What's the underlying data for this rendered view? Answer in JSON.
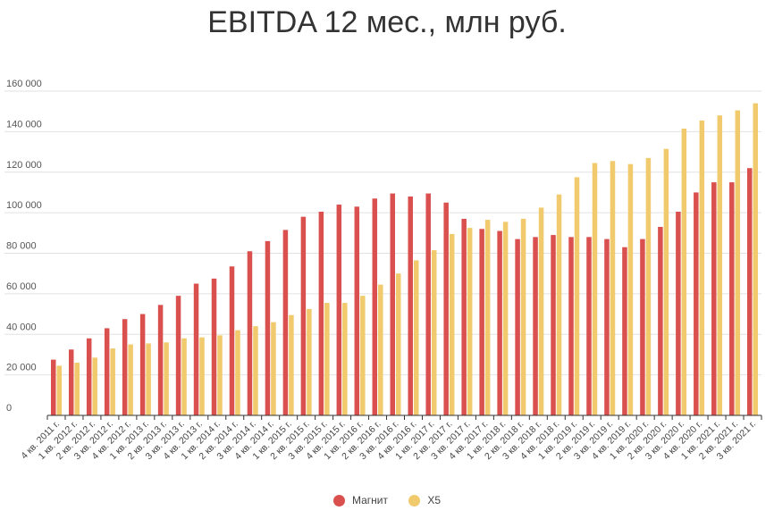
{
  "chart_data": {
    "type": "bar",
    "title": "EBITDA 12 мес., млн руб.",
    "xlabel": "",
    "ylabel": "",
    "ylim": [
      0,
      160000
    ],
    "yticks": [
      "0",
      "20 000",
      "40 000",
      "60 000",
      "80 000",
      "100 000",
      "120 000",
      "140 000",
      "160 000"
    ],
    "grid": true,
    "legend_position": "bottom",
    "categories": [
      "4 кв. 2011 г.",
      "1 кв. 2012 г.",
      "2 кв. 2012 г.",
      "3 кв. 2012 г.",
      "4 кв. 2012 г.",
      "1 кв. 2013 г.",
      "2 кв. 2013 г.",
      "3 кв. 2013 г.",
      "4 кв. 2013 г.",
      "1 кв. 2014 г.",
      "2 кв. 2014 г.",
      "3 кв. 2014 г.",
      "4 кв. 2014 г.",
      "1 кв. 2015 г.",
      "2 кв. 2015 г.",
      "3 кв. 2015 г.",
      "4 кв. 2015 г.",
      "1 кв. 2016 г.",
      "2 кв. 2016 г.",
      "3 кв. 2016 г.",
      "4 кв. 2016 г.",
      "1 кв. 2017 г.",
      "2 кв. 2017 г.",
      "3 кв. 2017 г.",
      "4 кв. 2017 г.",
      "1 кв. 2018 г.",
      "2 кв. 2018 г.",
      "3 кв. 2018 г.",
      "4 кв. 2018 г.",
      "1 кв. 2019 г.",
      "2 кв. 2019 г.",
      "3 кв. 2019 г.",
      "4 кв. 2019 г.",
      "1 кв. 2020 г.",
      "2 кв. 2020 г.",
      "3 кв. 2020 г.",
      "4 кв. 2020 г.",
      "1 кв. 2021 г.",
      "2 кв. 2021 г.",
      "3 кв. 2021 г."
    ],
    "series": [
      {
        "name": "Магнит",
        "color": "#d9504e",
        "values": [
          27500,
          32500,
          38000,
          43000,
          47500,
          50000,
          54500,
          59000,
          65000,
          67500,
          73500,
          81000,
          86000,
          91500,
          98000,
          100500,
          104000,
          103000,
          107000,
          109500,
          108000,
          109500,
          105000,
          97000,
          92000,
          91000,
          87000,
          88000,
          89000,
          88000,
          88000,
          87000,
          83000,
          87000,
          93000,
          100500,
          110000,
          115000,
          115000,
          122000
        ]
      },
      {
        "name": "X5",
        "color": "#f0ca6c",
        "values": [
          24500,
          26000,
          28500,
          33000,
          35000,
          35500,
          36000,
          38000,
          38500,
          39500,
          42000,
          44000,
          46000,
          49500,
          52500,
          55500,
          55500,
          59000,
          64500,
          70000,
          76500,
          81500,
          89500,
          92500,
          96500,
          95500,
          97000,
          102500,
          109000,
          117500,
          124500,
          125500,
          124000,
          127000,
          131500,
          141500,
          145500,
          148000,
          150500,
          154000
        ]
      }
    ]
  }
}
